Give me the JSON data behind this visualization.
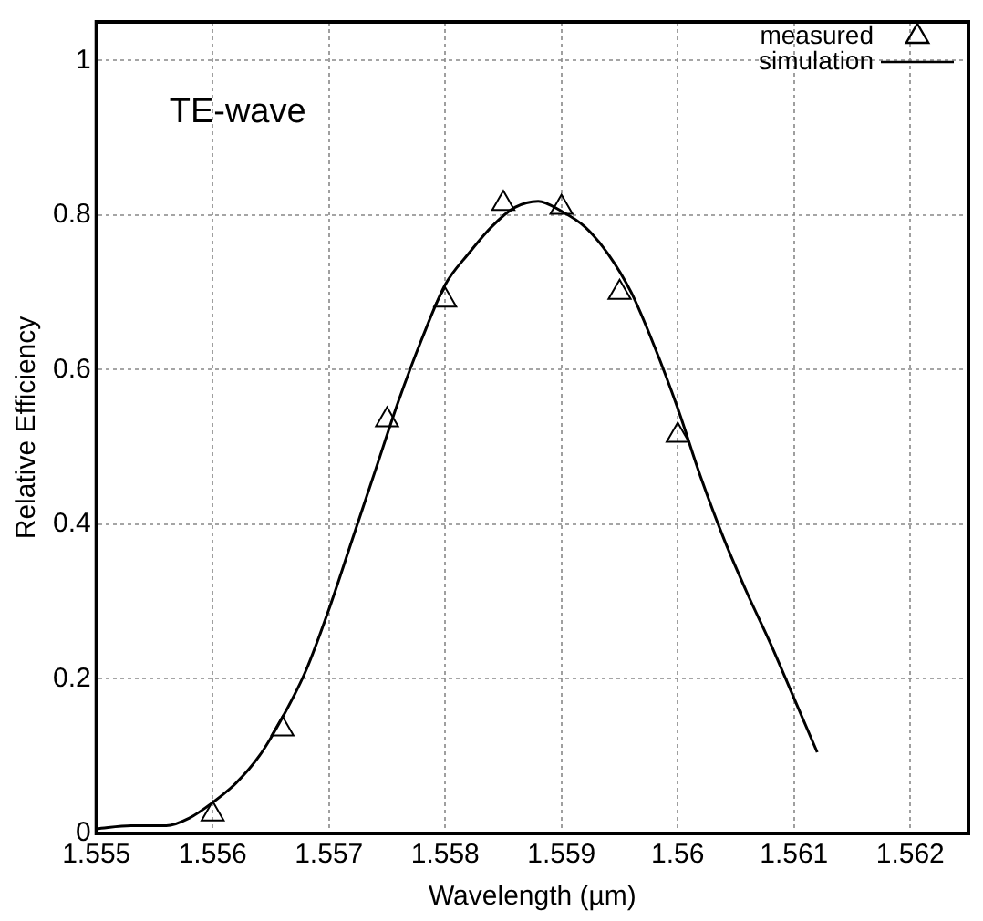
{
  "chart_data": {
    "type": "scatter",
    "xlabel": "Wavelength (µm)",
    "ylabel": "Relative Efficiency",
    "annotations": [
      "TE-wave"
    ],
    "xlim": [
      1.555,
      1.5625
    ],
    "xticks": [
      1.555,
      1.556,
      1.557,
      1.558,
      1.559,
      1.56,
      1.561,
      1.562
    ],
    "ylim": [
      0,
      1.05
    ],
    "yticks": [
      0,
      0.2,
      0.4,
      0.6,
      0.8,
      1
    ],
    "grid": true,
    "legend": "top right",
    "marker": "triangle",
    "series": [
      {
        "name": "measured",
        "type": "scatter",
        "color": "#000000",
        "x": [
          1.556,
          1.5566,
          1.5575,
          1.558,
          1.5585,
          1.559,
          1.5595,
          1.56
        ],
        "values": [
          0.025,
          0.135,
          0.535,
          0.69,
          0.815,
          0.81,
          0.7,
          0.515
        ]
      },
      {
        "name": "simulation",
        "type": "line",
        "color": "#000000",
        "marker": "none",
        "line_style": "solid",
        "x": [
          1.555,
          1.5553,
          1.5556,
          1.5558,
          1.556,
          1.5562,
          1.5564,
          1.5566,
          1.5568,
          1.557,
          1.5572,
          1.5574,
          1.5576,
          1.5578,
          1.558,
          1.5582,
          1.5584,
          1.5586,
          1.5588,
          1.559,
          1.5592,
          1.5594,
          1.5596,
          1.5598,
          1.56,
          1.5602,
          1.5604,
          1.5606,
          1.5608,
          1.561,
          1.5612
        ],
        "values": [
          0.006,
          0.01,
          0.01,
          0.02,
          0.04,
          0.065,
          0.1,
          0.15,
          0.21,
          0.29,
          0.38,
          0.47,
          0.56,
          0.64,
          0.71,
          0.75,
          0.785,
          0.81,
          0.818,
          0.805,
          0.785,
          0.75,
          0.7,
          0.63,
          0.55,
          0.46,
          0.38,
          0.31,
          0.245,
          0.175,
          0.105
        ]
      }
    ]
  }
}
